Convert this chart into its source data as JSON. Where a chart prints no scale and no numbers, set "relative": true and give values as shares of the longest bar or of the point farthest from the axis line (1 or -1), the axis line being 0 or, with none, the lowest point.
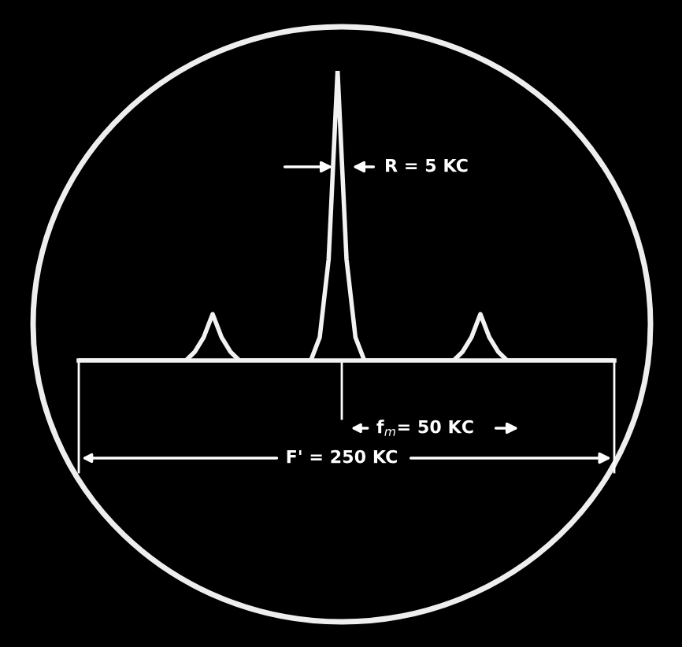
{
  "chart_data": {
    "type": "line",
    "relative": true,
    "color": "#f2f2f2",
    "categories": [
      null,
      null,
      null,
      null,
      null,
      null,
      null,
      null,
      null,
      null,
      null,
      null,
      null,
      null,
      null,
      null,
      null,
      null,
      null,
      null,
      null,
      null,
      null,
      null,
      null,
      null,
      null,
      null,
      null,
      null,
      null,
      null,
      null,
      null,
      null,
      null,
      null,
      null,
      null,
      null,
      null,
      null,
      null,
      null,
      null,
      null,
      null,
      null,
      null,
      null,
      null,
      null,
      null,
      null,
      null,
      null,
      null,
      null,
      null,
      null,
      null
    ],
    "values": [
      0,
      0,
      0,
      0,
      0,
      0,
      0,
      0,
      0,
      0,
      0,
      0,
      0,
      0.03,
      0.08,
      0.16,
      0.08,
      0.03,
      0,
      0,
      0,
      0,
      0,
      0,
      0,
      0,
      0,
      0.08,
      0.35,
      1,
      0.35,
      0.08,
      0,
      0,
      0,
      0,
      0,
      0,
      0,
      0,
      0,
      0,
      0,
      0.03,
      0.08,
      0.16,
      0.08,
      0.03,
      0,
      0,
      0,
      0,
      0,
      0,
      0,
      0,
      0,
      0,
      0,
      0,
      0
    ],
    "annotations": [
      "R = 5 KC",
      "f$_{m}$= 50 KC",
      "F' = 250 KC"
    ],
    "grid": false,
    "legend": false,
    "marker": "none",
    "line_style": "solid"
  }
}
